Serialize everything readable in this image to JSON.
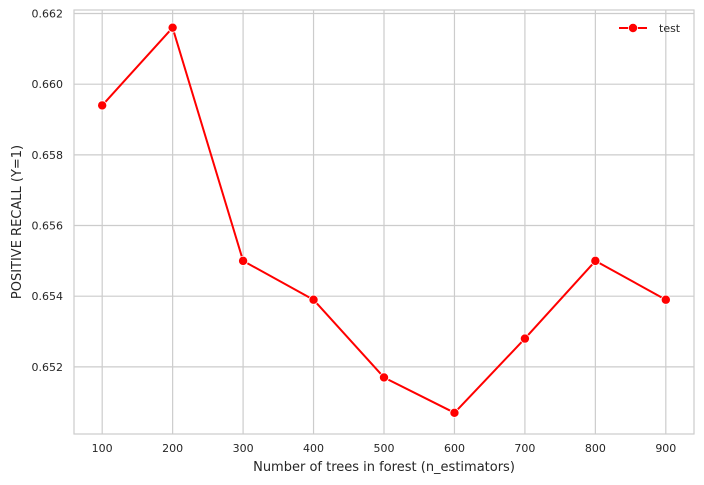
{
  "chart_data": {
    "type": "line",
    "xlabel": "Number of trees in forest (n_estimators)",
    "ylabel": "POSITIVE RECALL (Y=1)",
    "x": [
      100,
      200,
      300,
      400,
      500,
      600,
      700,
      800,
      900
    ],
    "x_ticks": [
      "100",
      "200",
      "300",
      "400",
      "500",
      "600",
      "700",
      "800",
      "900"
    ],
    "xlim": [
      60,
      940
    ],
    "y_ticks": [
      "0.652",
      "0.654",
      "0.656",
      "0.658",
      "0.660",
      "0.662"
    ],
    "ylim": [
      0.6501,
      0.6621
    ],
    "grid": true,
    "legend_position": "top-right",
    "series": [
      {
        "name": "test",
        "color": "#ff0000",
        "marker": "circle",
        "values": [
          0.6594,
          0.6616,
          0.655,
          0.6539,
          0.6517,
          0.6507,
          0.6528,
          0.655,
          0.6539
        ]
      }
    ]
  }
}
